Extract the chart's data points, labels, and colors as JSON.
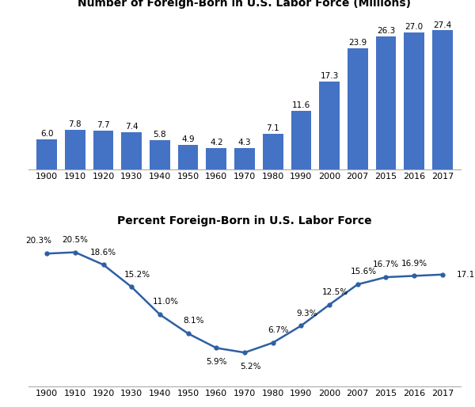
{
  "years": [
    "1900",
    "1910",
    "1920",
    "1930",
    "1940",
    "1950",
    "1960",
    "1970",
    "1980",
    "1990",
    "2000",
    "2007",
    "2015",
    "2016",
    "2017"
  ],
  "bar_values": [
    6.0,
    7.8,
    7.7,
    7.4,
    5.8,
    4.9,
    4.2,
    4.3,
    7.1,
    11.6,
    17.3,
    23.9,
    26.3,
    27.0,
    27.4
  ],
  "line_values": [
    20.3,
    20.5,
    18.6,
    15.2,
    11.0,
    8.1,
    5.9,
    5.2,
    6.7,
    9.3,
    12.5,
    15.6,
    16.7,
    16.9,
    17.1
  ],
  "bar_color": "#4472C4",
  "line_color": "#2E5FA3",
  "bar_title": "Number of Foreign-Born in U.S. Labor Force (Millions)",
  "line_title": "Percent Foreign-Born in U.S. Labor Force",
  "bar_label_fontsize": 7.5,
  "line_label_fontsize": 7.5,
  "title_fontsize": 10,
  "tick_fontsize": 8,
  "line_label_offsets": [
    [
      -0.3,
      1.3,
      "center",
      "bottom"
    ],
    [
      0.0,
      1.3,
      "center",
      "bottom"
    ],
    [
      0.0,
      1.3,
      "center",
      "bottom"
    ],
    [
      0.2,
      1.3,
      "center",
      "bottom"
    ],
    [
      0.2,
      1.3,
      "center",
      "bottom"
    ],
    [
      0.2,
      1.3,
      "center",
      "bottom"
    ],
    [
      0.0,
      -1.5,
      "center",
      "top"
    ],
    [
      0.2,
      -1.5,
      "center",
      "top"
    ],
    [
      0.2,
      1.3,
      "center",
      "bottom"
    ],
    [
      0.2,
      1.3,
      "center",
      "bottom"
    ],
    [
      0.2,
      1.3,
      "center",
      "bottom"
    ],
    [
      0.2,
      1.3,
      "center",
      "bottom"
    ],
    [
      0.0,
      1.3,
      "center",
      "bottom"
    ],
    [
      0.0,
      1.3,
      "center",
      "bottom"
    ],
    [
      0.5,
      0.0,
      "left",
      "center"
    ]
  ]
}
